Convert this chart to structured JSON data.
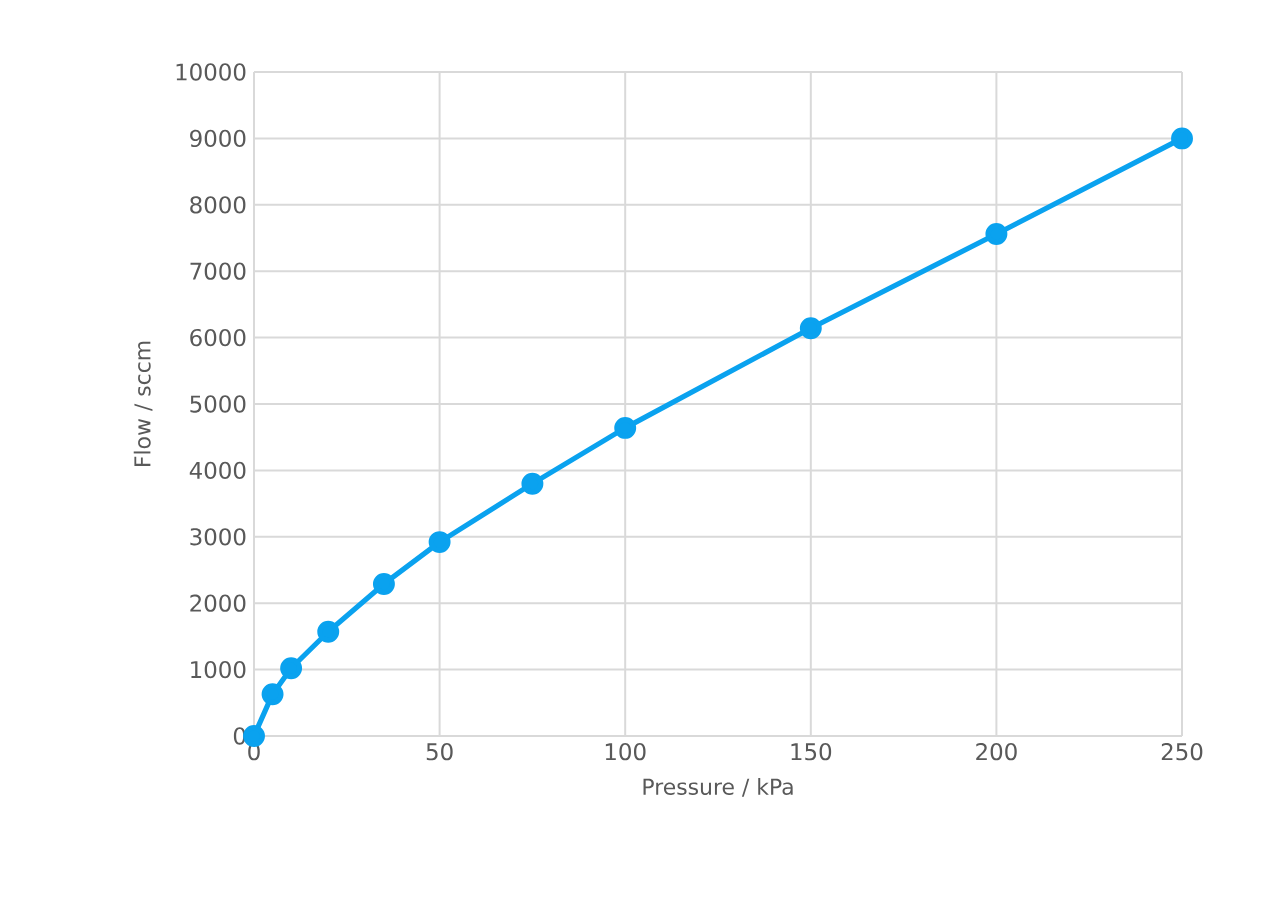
{
  "chart_data": {
    "type": "line",
    "xlabel": "Pressure / kPa",
    "ylabel": "Flow / sccm",
    "x": [
      0,
      5,
      10,
      20,
      35,
      50,
      75,
      100,
      150,
      200,
      250
    ],
    "series": [
      {
        "color": "#0aa2ef",
        "values": [
          0,
          630,
          1020,
          1570,
          2290,
          2920,
          3800,
          4640,
          6140,
          7560,
          9000
        ]
      }
    ],
    "xlim": [
      0,
      250
    ],
    "ylim": [
      0,
      10000
    ],
    "xticks": [
      0,
      50,
      100,
      150,
      200,
      250
    ],
    "yticks": [
      0,
      1000,
      2000,
      3000,
      4000,
      5000,
      6000,
      7000,
      8000,
      9000,
      10000
    ],
    "grid": true,
    "marker": "circle",
    "line_style": "solid"
  }
}
